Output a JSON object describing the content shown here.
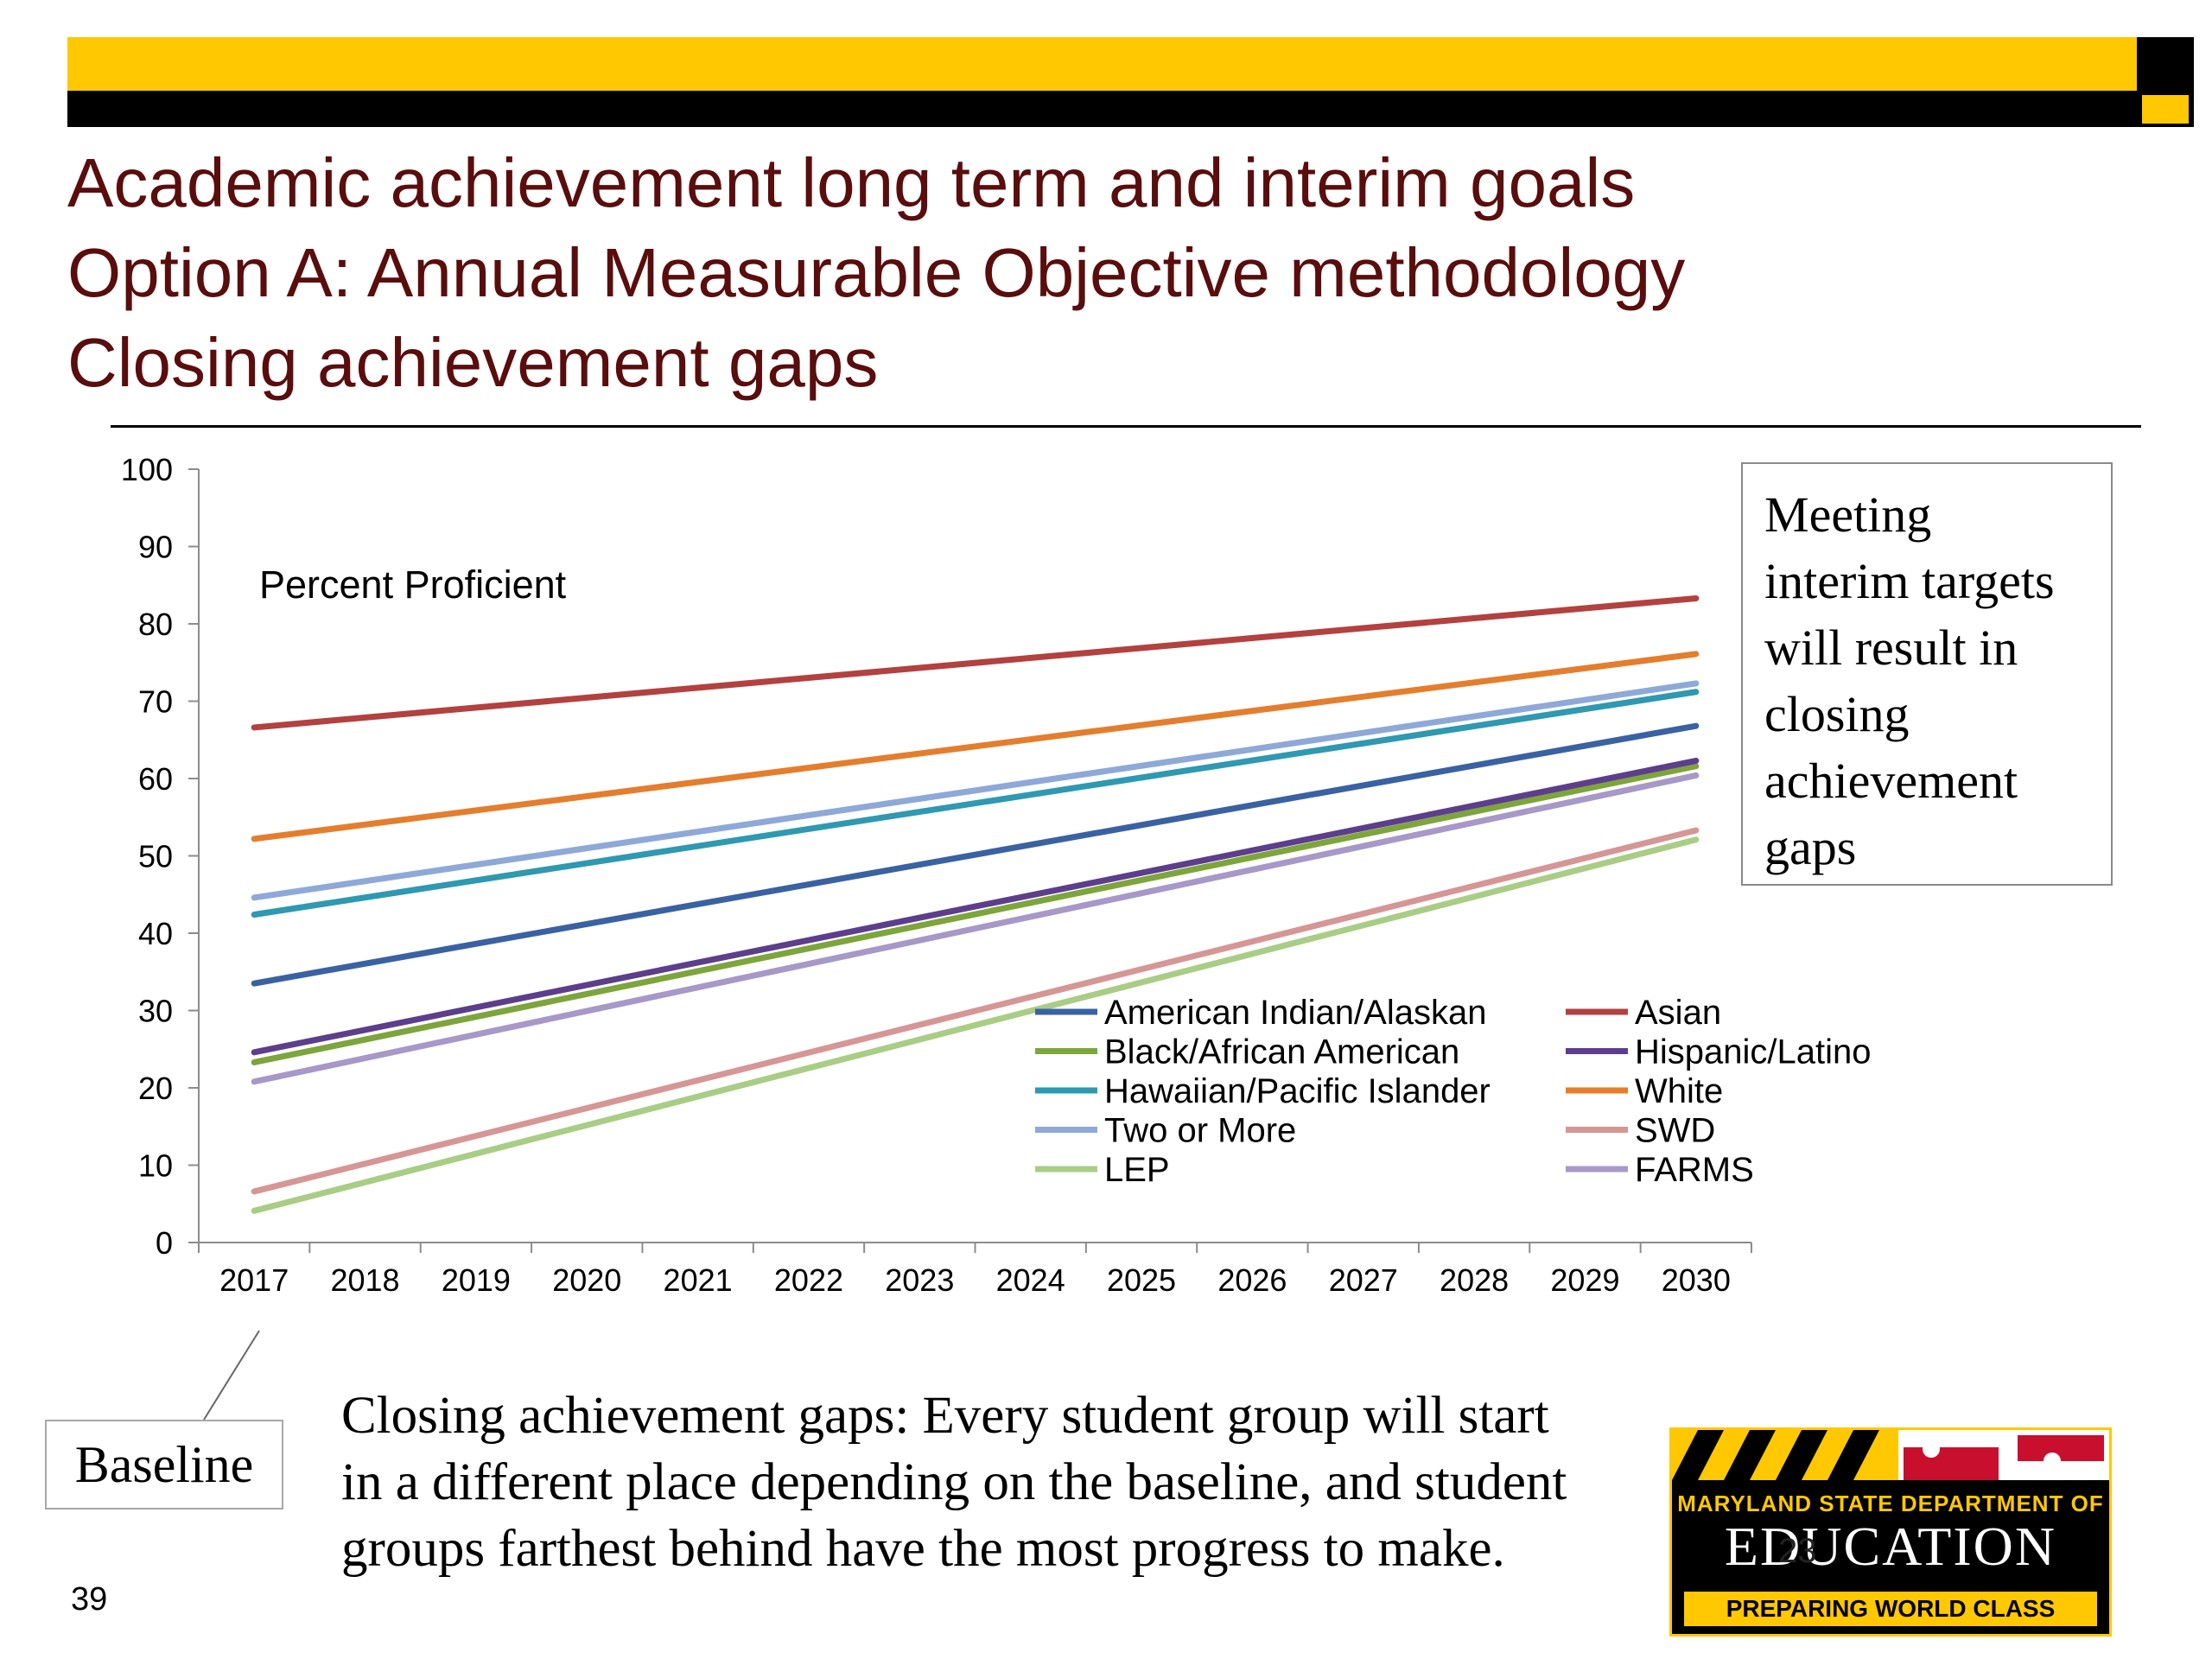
{
  "slide": {
    "title_lines": [
      "Academic achievement long term and interim goals",
      "Option A: Annual Measurable Objective methodology",
      "Closing achievement gaps"
    ],
    "callout_lines": [
      "Meeting",
      "interim targets",
      "will result in",
      "closing",
      "achievement",
      "gaps"
    ],
    "baseline_label": "Baseline",
    "footnote_lines": [
      "Closing achievement gaps:  Every student group will start",
      "in a different place depending on the baseline, and student",
      "groups farthest behind have the most progress to make."
    ],
    "page_number": "39",
    "logo": {
      "line1": "MARYLAND STATE DEPARTMENT OF",
      "line2": "EDUCATION",
      "line3": "PREPARING WORLD CLASS STUDENTS",
      "slide_number": "23"
    },
    "colors": {
      "accent_yellow": "#FFC800",
      "title_maroon": "#5A0D0D",
      "rule": "#000000"
    }
  },
  "chart_data": {
    "type": "line",
    "title": "Percent Proficient",
    "xlabel": "",
    "ylabel": "",
    "ylim": [
      0,
      100
    ],
    "yticks": [
      0,
      10,
      20,
      30,
      40,
      50,
      60,
      70,
      80,
      90,
      100
    ],
    "grid": false,
    "legend_position": "bottom-right-inside",
    "x": [
      "2017",
      "2018",
      "2019",
      "2020",
      "2021",
      "2022",
      "2023",
      "2024",
      "2025",
      "2026",
      "2027",
      "2028",
      "2029",
      "2030"
    ],
    "series": [
      {
        "name": "American Indian/Alaskan",
        "color": "#3A62A3",
        "start": 33.5,
        "end": 66.8
      },
      {
        "name": "Asian",
        "color": "#B24140",
        "start": 66.6,
        "end": 83.3
      },
      {
        "name": "Black/African American",
        "color": "#7DA53C",
        "start": 23.3,
        "end": 61.6
      },
      {
        "name": "Hispanic/Latino",
        "color": "#5D3E8C",
        "start": 24.6,
        "end": 62.3
      },
      {
        "name": "Hawaiian/Pacific Islander",
        "color": "#2E99B0",
        "start": 42.4,
        "end": 71.2
      },
      {
        "name": "White",
        "color": "#E47E2D",
        "start": 52.2,
        "end": 76.1
      },
      {
        "name": "Two or More",
        "color": "#8EA9D8",
        "start": 44.6,
        "end": 72.3
      },
      {
        "name": "SWD",
        "color": "#D69695",
        "start": 6.6,
        "end": 53.3
      },
      {
        "name": "LEP",
        "color": "#A9CD85",
        "start": 4.1,
        "end": 52.1
      },
      {
        "name": "FARMS",
        "color": "#A798C8",
        "start": 20.8,
        "end": 60.4
      }
    ]
  }
}
